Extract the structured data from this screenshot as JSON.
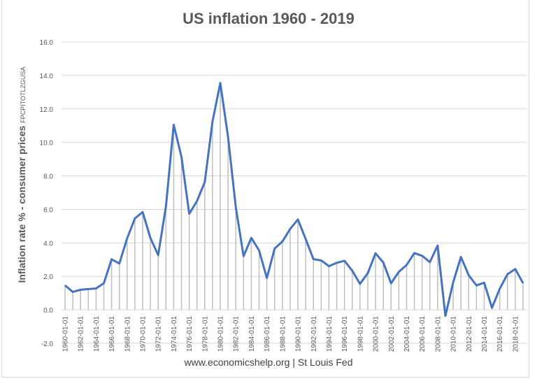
{
  "chart_data": {
    "type": "line",
    "title": "US inflation 1960 - 2019",
    "ylabel": "Inflation rate % - consumer prices",
    "ylabel_code": "FPCPITOTLZGUSA",
    "footer": "www.economicshelp.org  | St Louis Fed",
    "ylim": [
      -2,
      16
    ],
    "yticks": [
      "-2.0",
      "0.0",
      "2.0",
      "4.0",
      "6.0",
      "8.0",
      "10.0",
      "12.0",
      "14.0",
      "16.0"
    ],
    "grid": true,
    "line_color": "#4472c4",
    "x": [
      "1960-01-01",
      "1961-01-01",
      "1962-01-01",
      "1963-01-01",
      "1964-01-01",
      "1965-01-01",
      "1966-01-01",
      "1967-01-01",
      "1968-01-01",
      "1969-01-01",
      "1970-01-01",
      "1971-01-01",
      "1972-01-01",
      "1973-01-01",
      "1974-01-01",
      "1975-01-01",
      "1976-01-01",
      "1977-01-01",
      "1978-01-01",
      "1979-01-01",
      "1980-01-01",
      "1981-01-01",
      "1982-01-01",
      "1983-01-01",
      "1984-01-01",
      "1985-01-01",
      "1986-01-01",
      "1987-01-01",
      "1988-01-01",
      "1989-01-01",
      "1990-01-01",
      "1991-01-01",
      "1992-01-01",
      "1993-01-01",
      "1994-01-01",
      "1995-01-01",
      "1996-01-01",
      "1997-01-01",
      "1998-01-01",
      "1999-01-01",
      "2000-01-01",
      "2001-01-01",
      "2002-01-01",
      "2003-01-01",
      "2004-01-01",
      "2005-01-01",
      "2006-01-01",
      "2007-01-01",
      "2008-01-01",
      "2009-01-01",
      "2010-01-01",
      "2011-01-01",
      "2012-01-01",
      "2013-01-01",
      "2014-01-01",
      "2015-01-01",
      "2016-01-01",
      "2017-01-01",
      "2018-01-01",
      "2019-01-01"
    ],
    "values": [
      1.46,
      1.07,
      1.2,
      1.24,
      1.28,
      1.59,
      3.02,
      2.77,
      4.27,
      5.46,
      5.84,
      4.29,
      3.27,
      6.18,
      11.05,
      9.14,
      5.74,
      6.5,
      7.63,
      11.25,
      13.55,
      10.33,
      6.13,
      3.21,
      4.3,
      3.55,
      1.9,
      3.66,
      4.08,
      4.83,
      5.4,
      4.23,
      3.03,
      2.95,
      2.61,
      2.81,
      2.93,
      2.34,
      1.55,
      2.19,
      3.38,
      2.83,
      1.59,
      2.27,
      2.68,
      3.39,
      3.23,
      2.85,
      3.84,
      -0.36,
      1.64,
      3.16,
      2.07,
      1.46,
      1.62,
      0.12,
      1.26,
      2.13,
      2.44,
      1.6
    ],
    "xtick_every": 2
  }
}
